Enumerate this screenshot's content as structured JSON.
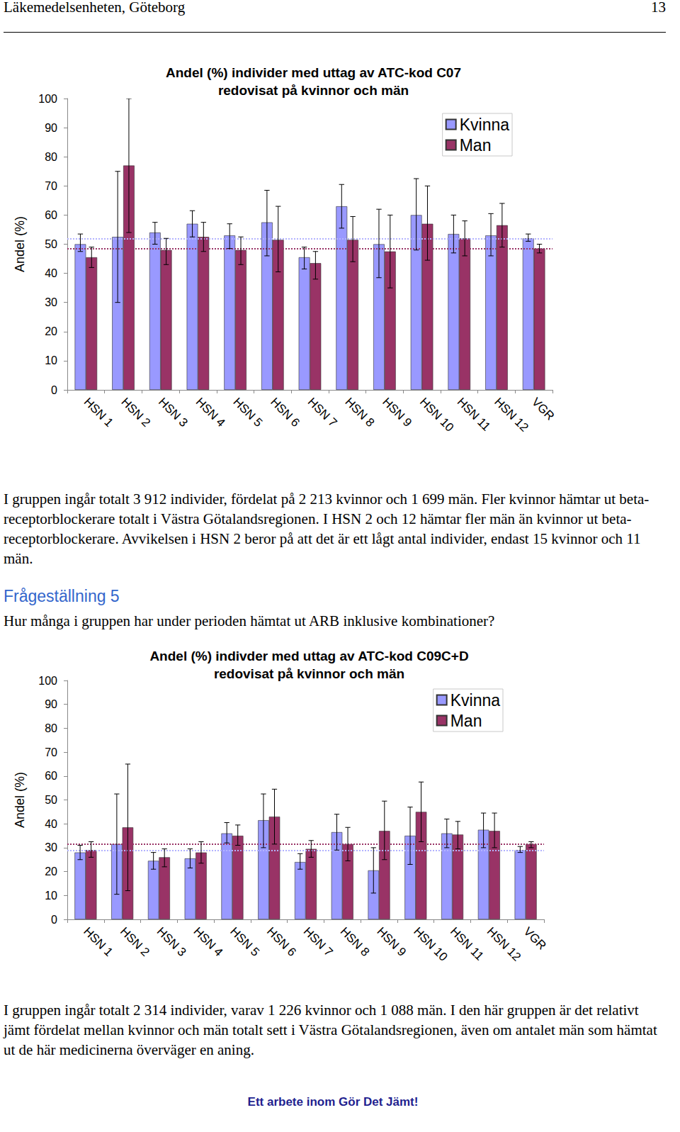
{
  "header": {
    "left": "Läkemedelsenheten, Göteborg",
    "page": "13"
  },
  "chart_data": [
    {
      "type": "bar",
      "title": "Andel (%) individer med uttag av ATC-kod C07\nredovisat på kvinnor och män",
      "y_label": "Andel (%)",
      "categories": [
        "HSN 1",
        "HSN 2",
        "HSN 3",
        "HSN 4",
        "HSN 5",
        "HSN 6",
        "HSN 7",
        "HSN 8",
        "HSN 9",
        "HSN 10",
        "HSN 11",
        "HSN 12",
        "VGR"
      ],
      "series": [
        {
          "name": "Kvinna",
          "color": "#9999ff",
          "values": [
            50,
            52.5,
            54,
            57,
            53,
            57.5,
            45.5,
            63,
            50,
            60,
            53.5,
            53,
            52
          ],
          "error_low": [
            47.5,
            30,
            50,
            52.5,
            48.5,
            46,
            41.5,
            55.5,
            38.5,
            48,
            47,
            46,
            51
          ],
          "error_high": [
            53.5,
            75,
            57.5,
            61.5,
            57,
            68.5,
            49,
            70.5,
            62,
            72.5,
            60,
            60.5,
            53.5
          ],
          "reference_line": 52
        },
        {
          "name": "Man",
          "color": "#993366",
          "values": [
            45.5,
            77,
            48,
            52.5,
            48,
            51.5,
            43.5,
            51.5,
            47.5,
            57,
            52,
            56.5,
            48.5
          ],
          "error_low": [
            42,
            54,
            43,
            47.5,
            43,
            40.5,
            38,
            44,
            35,
            44.5,
            46,
            49,
            47
          ],
          "error_high": [
            49,
            100,
            52,
            57.5,
            52.5,
            63,
            47.5,
            59.5,
            60,
            70,
            58,
            64,
            50
          ],
          "reference_line": 48.5
        }
      ],
      "ylim": [
        0,
        100
      ],
      "yticks": [
        0,
        10,
        20,
        30,
        40,
        50,
        60,
        70,
        80,
        90,
        100
      ],
      "grid": false,
      "legend": "top right"
    },
    {
      "type": "bar",
      "title": "Andel (%) indivder med uttag av ATC-kod C09C+D\nredovisat på kvinnor och män",
      "y_label": "Andel (%)",
      "categories": [
        "HSN 1",
        "HSN 2",
        "HSN 3",
        "HSN 4",
        "HSN 5",
        "HSN 6",
        "HSN 7",
        "HSN 8",
        "HSN 9",
        "HSN 10",
        "HSN 11",
        "HSN 12",
        "VGR"
      ],
      "series": [
        {
          "name": "Kvinna",
          "color": "#9999ff",
          "values": [
            28,
            31.5,
            24.5,
            25.5,
            36,
            41.5,
            24,
            36.5,
            20.5,
            35,
            36,
            37.5,
            29
          ],
          "error_low": [
            25,
            10.5,
            21,
            21.5,
            32,
            30,
            21,
            29,
            11,
            23,
            30,
            30,
            28
          ],
          "error_high": [
            31,
            52.5,
            28,
            29.5,
            40.5,
            52.5,
            27.5,
            44,
            30,
            47,
            42,
            44.5,
            30.5
          ],
          "reference_line": 29
        },
        {
          "name": "Man",
          "color": "#993366",
          "values": [
            29,
            38.5,
            26,
            28,
            35,
            43,
            29.5,
            31.5,
            37,
            45,
            35.5,
            37,
            31.5
          ],
          "error_low": [
            26,
            12,
            22,
            23.5,
            31,
            31.5,
            26,
            24.5,
            25,
            32.5,
            29.5,
            30,
            30
          ],
          "error_high": [
            32.5,
            65,
            29.5,
            32.5,
            39.5,
            54.5,
            33,
            38.5,
            49.5,
            57.5,
            41,
            44.5,
            32.5
          ],
          "reference_line": 31.5
        }
      ],
      "ylim": [
        0,
        100
      ],
      "yticks": [
        0,
        10,
        20,
        30,
        40,
        50,
        60,
        70,
        80,
        90,
        100
      ],
      "grid": false,
      "legend": "top right"
    }
  ],
  "paragraphs": [
    "I gruppen ingår totalt 3 912 individer, fördelat på 2 213 kvinnor och 1 699 män. Fler kvinnor hämtar ut beta-receptorblockerare totalt i Västra Götalandsregionen. I HSN 2 och 12 hämtar fler män än kvinnor ut beta-receptorblockerare. Avvikelsen i HSN 2 beror på att det är ett lågt antal individer, endast 15 kvinnor och 11 män.",
    "I gruppen ingår totalt 2 314 individer, varav 1 226 kvinnor och 1 088 män. I den här gruppen är det relativt jämt fördelat mellan kvinnor och män totalt sett i Västra Götalandsregionen, även om antalet män som hämtat ut de här medicinerna överväger en aning."
  ],
  "section": {
    "heading": "Frågeställning 5",
    "question": "Hur många i gruppen har under perioden hämtat ut ARB inklusive kombinationer?"
  },
  "footer": "Ett arbete inom Gör Det Jämt!"
}
